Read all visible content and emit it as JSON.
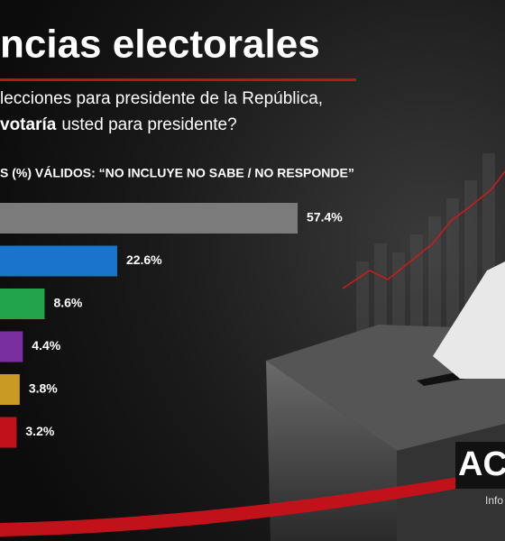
{
  "chart_data": {
    "type": "bar",
    "orientation": "horizontal",
    "title": "ncias electorales",
    "subtitle": {
      "line1": "lecciones para presidente de la República,",
      "line2_bold": "votaría",
      "line2": "usted para presidente?"
    },
    "note": "S (%) VÁLIDOS: “NO INCLUYE NO SABE / NO RESPONDE”",
    "categories": [
      null,
      null,
      null,
      null,
      null,
      null
    ],
    "values": [
      57.4,
      22.6,
      8.6,
      4.4,
      3.8,
      3.2
    ],
    "value_labels": [
      "57.4%",
      "22.6%",
      "8.6%",
      "4.4%",
      "3.8%",
      "3.2%"
    ],
    "colors": [
      "#7b7b7b",
      "#1b74cc",
      "#1fa34b",
      "#7a2fa1",
      "#c99b24",
      "#c1121c"
    ]
  },
  "logo": {
    "text": "AC",
    "subtext": "Info"
  }
}
